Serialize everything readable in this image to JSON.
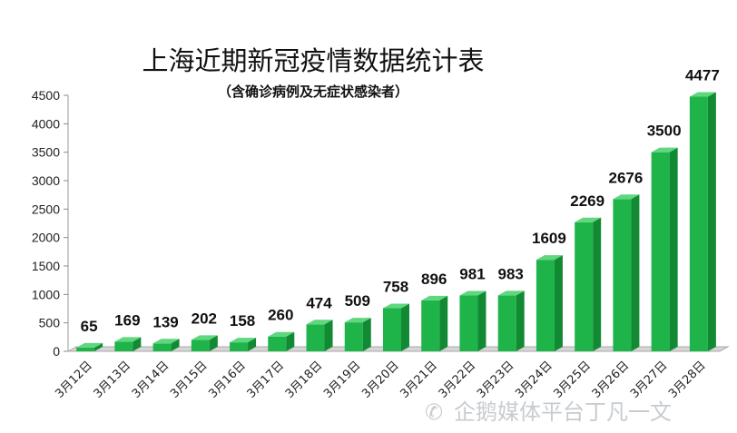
{
  "chart_data": {
    "type": "bar",
    "title": "上海近期新冠疫情数据统计表",
    "subtitle": "（含确诊病例及无症状感染者）",
    "categories": [
      "3月12日",
      "3月13日",
      "3月14日",
      "3月15日",
      "3月16日",
      "3月17日",
      "3月18日",
      "3月19日",
      "3月20日",
      "3月21日",
      "3月22日",
      "3月23日",
      "3月24日",
      "3月25日",
      "3月26日",
      "3月27日",
      "3月28日"
    ],
    "values": [
      65,
      169,
      139,
      202,
      158,
      260,
      474,
      509,
      758,
      896,
      981,
      983,
      1609,
      2269,
      2676,
      3500,
      4477
    ],
    "ylim": [
      0,
      4500
    ],
    "yticks": [
      0,
      500,
      1000,
      1500,
      2000,
      2500,
      3000,
      3500,
      4000,
      4500
    ],
    "xlabel": "",
    "ylabel": "",
    "grid": false,
    "legend": "none",
    "bar_color": "#1fb44a",
    "bar_top_color": "#5fd77e",
    "bar_side_color": "#118a33"
  },
  "watermark": "企鹅媒体平台丁凡一文"
}
